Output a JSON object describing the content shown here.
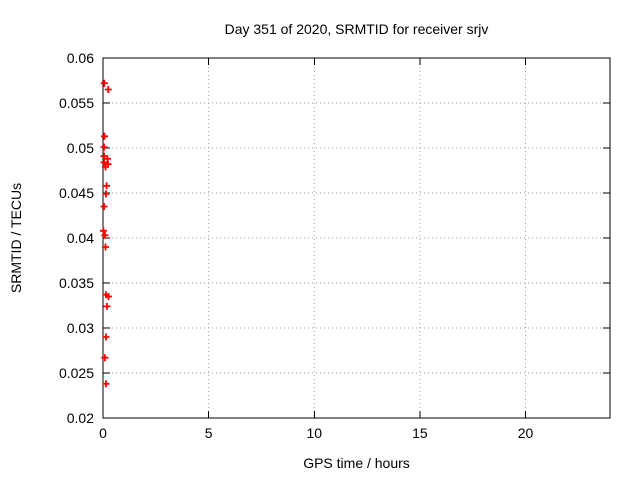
{
  "window": {
    "background": "#ffffff"
  },
  "colors": {
    "axis": "#000000",
    "grid": "#a0a0a0",
    "text": "#000000",
    "marker": "#ff0000",
    "background": "#ffffff"
  },
  "chart_data": {
    "type": "scatter",
    "title": "Day 351 of 2020, SRMTID for receiver srjv",
    "xlabel": "GPS time / hours",
    "ylabel": "SRMTID / TECUs",
    "xlim": [
      0,
      24
    ],
    "ylim": [
      0.02,
      0.06
    ],
    "grid": true,
    "legend": "none",
    "xticks": [
      {
        "v": 0,
        "label": "0"
      },
      {
        "v": 5,
        "label": "5"
      },
      {
        "v": 10,
        "label": "10"
      },
      {
        "v": 15,
        "label": "15"
      },
      {
        "v": 20,
        "label": "20"
      }
    ],
    "yticks": [
      {
        "v": 0.02,
        "label": "0.02"
      },
      {
        "v": 0.025,
        "label": "0.025"
      },
      {
        "v": 0.03,
        "label": "0.03"
      },
      {
        "v": 0.035,
        "label": "0.035"
      },
      {
        "v": 0.04,
        "label": "0.04"
      },
      {
        "v": 0.045,
        "label": "0.045"
      },
      {
        "v": 0.05,
        "label": "0.05"
      },
      {
        "v": 0.055,
        "label": "0.055"
      },
      {
        "v": 0.06,
        "label": "0.06"
      }
    ],
    "marker": {
      "shape": "plus",
      "color": "#ff0000",
      "size": 7
    },
    "series": [
      {
        "name": "SRMTID",
        "points": [
          [
            0.06,
            0.0572
          ],
          [
            0.25,
            0.0565
          ],
          [
            0.07,
            0.0513
          ],
          [
            0.05,
            0.0501
          ],
          [
            0.05,
            0.0491
          ],
          [
            0.21,
            0.0488
          ],
          [
            0.05,
            0.0484
          ],
          [
            0.24,
            0.0482
          ],
          [
            0.12,
            0.0479
          ],
          [
            0.17,
            0.0458
          ],
          [
            0.14,
            0.0449
          ],
          [
            0.05,
            0.0435
          ],
          [
            0.02,
            0.0408
          ],
          [
            0.09,
            0.0403
          ],
          [
            0.12,
            0.039
          ],
          [
            0.14,
            0.0337
          ],
          [
            0.26,
            0.0335
          ],
          [
            0.19,
            0.0324
          ],
          [
            0.14,
            0.029
          ],
          [
            0.09,
            0.0267
          ],
          [
            0.14,
            0.0238
          ]
        ]
      }
    ]
  }
}
